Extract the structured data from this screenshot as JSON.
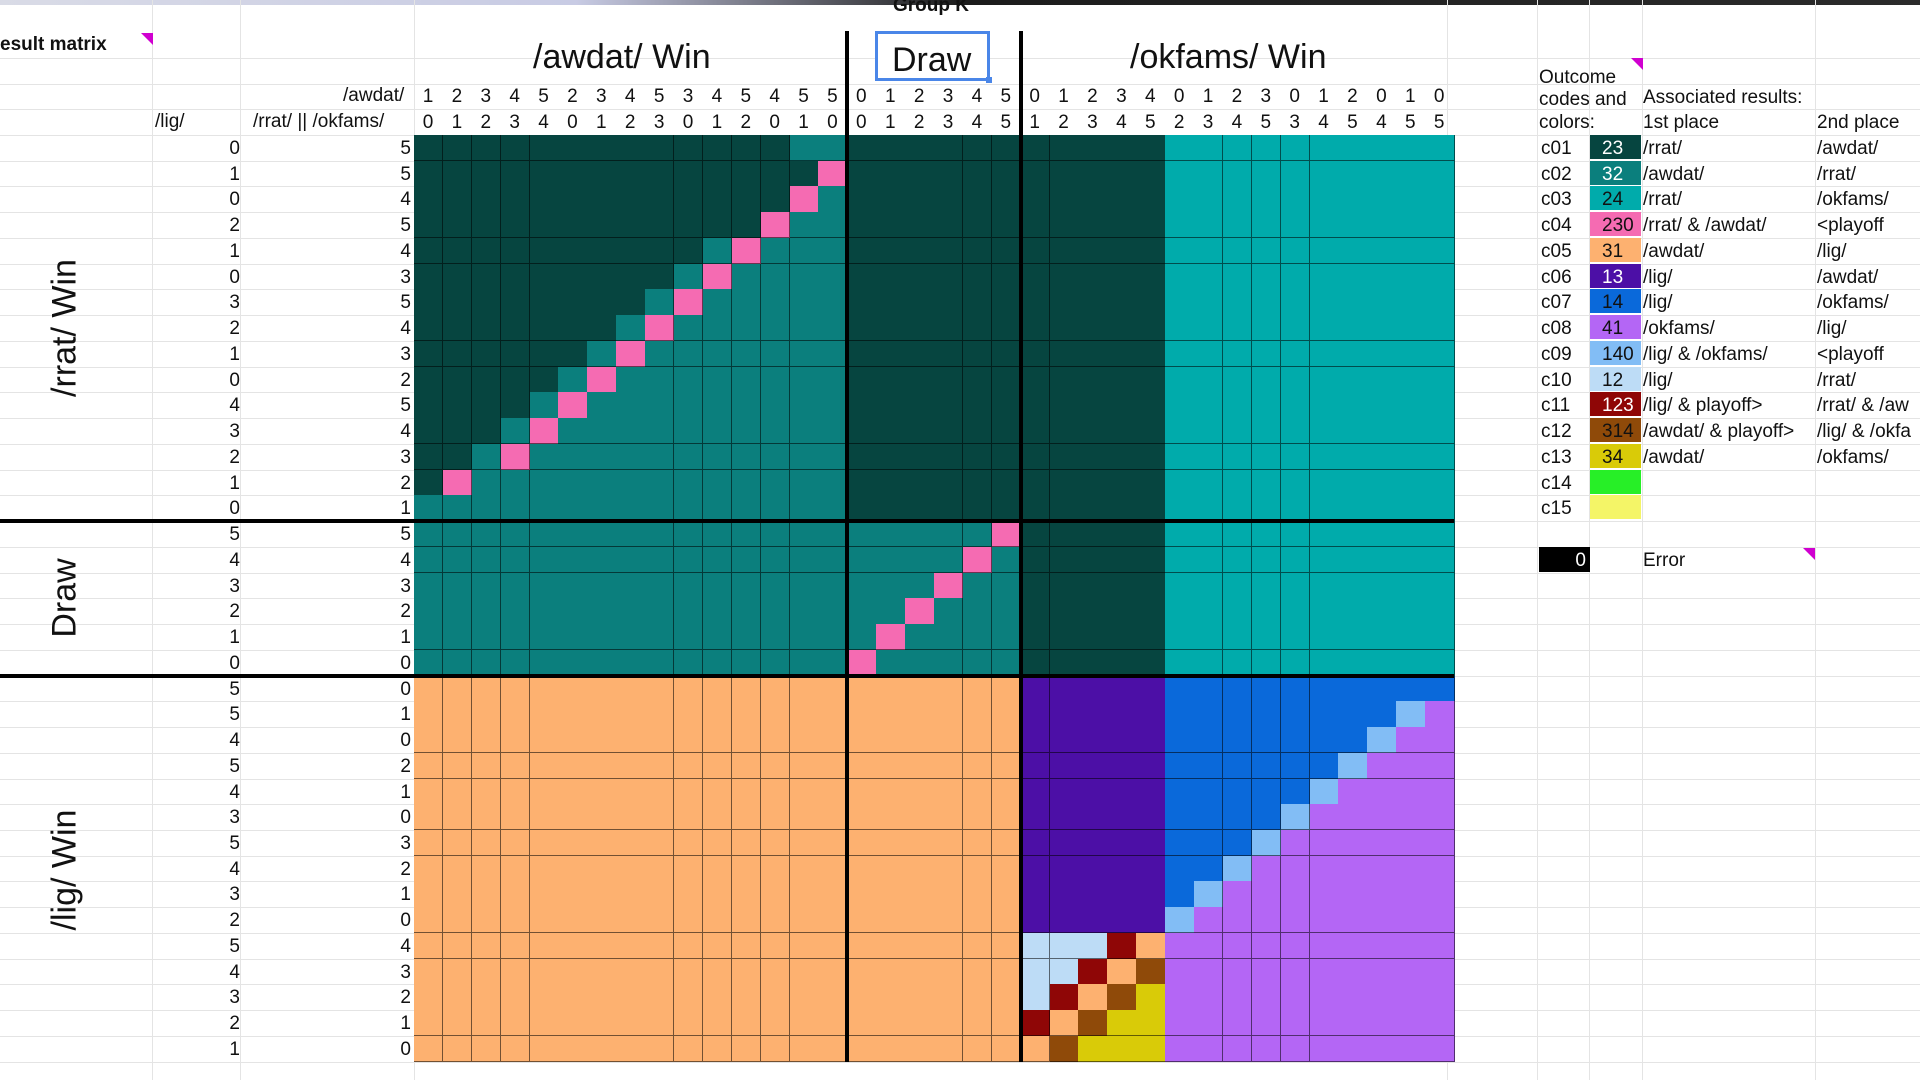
{
  "header": {
    "title_fragment": "esult matrix",
    "group_label": "Group K",
    "col_group_labels": [
      "/awdat/ Win",
      "Draw",
      "/okfams/ Win"
    ],
    "row_group_labels": [
      "/rrat/ Win",
      "Draw",
      "/lig/ Win"
    ],
    "row_header_team1": "/awdat/",
    "row_header_team2": "/rrat/ || /okfams/",
    "col_header_lig": "/lig/"
  },
  "matrix": {
    "col_awdat": [
      1,
      2,
      3,
      4,
      5,
      2,
      3,
      4,
      5,
      3,
      4,
      5,
      4,
      5,
      5,
      0,
      1,
      2,
      3,
      4,
      5,
      0,
      1,
      2,
      3,
      4,
      0,
      1,
      2,
      3,
      0,
      1,
      2,
      0,
      1,
      0
    ],
    "col_other": [
      0,
      1,
      2,
      3,
      4,
      0,
      1,
      2,
      3,
      0,
      1,
      2,
      0,
      1,
      0,
      0,
      1,
      2,
      3,
      4,
      5,
      1,
      2,
      3,
      4,
      5,
      2,
      3,
      4,
      5,
      3,
      4,
      5,
      4,
      5,
      5
    ],
    "row_lig": [
      0,
      1,
      0,
      2,
      1,
      0,
      3,
      2,
      1,
      0,
      4,
      3,
      2,
      1,
      0,
      5,
      4,
      3,
      2,
      1,
      0,
      5,
      5,
      4,
      5,
      4,
      3,
      5,
      4,
      3,
      2,
      5,
      4,
      3,
      2,
      1
    ],
    "row_other": [
      5,
      5,
      4,
      5,
      4,
      3,
      5,
      4,
      3,
      2,
      5,
      4,
      3,
      2,
      1,
      5,
      4,
      3,
      2,
      1,
      0,
      0,
      1,
      0,
      2,
      1,
      0,
      3,
      2,
      1,
      0,
      4,
      3,
      2,
      1,
      0
    ]
  },
  "legend": {
    "heading_codes": "Outcome codes and colors:",
    "heading_results": "Associated results:",
    "first_place_label": "1st place",
    "second_place_label": "2nd place",
    "items": [
      {
        "code": "c01",
        "value": "23",
        "color": "#064540",
        "text_color": "#ffffff",
        "first": "/rrat/",
        "second": "/awdat/"
      },
      {
        "code": "c02",
        "value": "32",
        "color": "#0b7f7d",
        "text_color": "#ffffff",
        "first": "/awdat/",
        "second": "/rrat/"
      },
      {
        "code": "c03",
        "value": "24",
        "color": "#00abab",
        "text_color": "#111111",
        "first": "/rrat/",
        "second": "/okfams/"
      },
      {
        "code": "c04",
        "value": "230",
        "color": "#f56bb2",
        "text_color": "#111111",
        "first": "/rrat/ & /awdat/",
        "second": "<playoff"
      },
      {
        "code": "c05",
        "value": "31",
        "color": "#fdb170",
        "text_color": "#111111",
        "first": "/awdat/",
        "second": "/lig/"
      },
      {
        "code": "c06",
        "value": "13",
        "color": "#4c0fa6",
        "text_color": "#ffffff",
        "first": "/lig/",
        "second": "/awdat/"
      },
      {
        "code": "c07",
        "value": "14",
        "color": "#0a69da",
        "text_color": "#111111",
        "first": "/lig/",
        "second": "/okfams/"
      },
      {
        "code": "c08",
        "value": "41",
        "color": "#b466f5",
        "text_color": "#111111",
        "first": "/okfams/",
        "second": "/lig/"
      },
      {
        "code": "c09",
        "value": "140",
        "color": "#82bdf5",
        "text_color": "#111111",
        "first": "/lig/ & /okfams/",
        "second": "<playoff"
      },
      {
        "code": "c10",
        "value": "12",
        "color": "#bddcf6",
        "text_color": "#111111",
        "first": "/lig/",
        "second": "/rrat/"
      },
      {
        "code": "c11",
        "value": "123",
        "color": "#8f0606",
        "text_color": "#ffffff",
        "first": "/lig/ & playoff>",
        "second": "/rrat/ & /aw"
      },
      {
        "code": "c12",
        "value": "314",
        "color": "#8f4a09",
        "text_color": "#111111",
        "first": "/awdat/ & playoff>",
        "second": "/lig/ & /okfa"
      },
      {
        "code": "c13",
        "value": "34",
        "color": "#d9cb08",
        "text_color": "#111111",
        "first": "/awdat/",
        "second": "/okfams/"
      },
      {
        "code": "c14",
        "value": "",
        "color": "#27ef27",
        "text_color": "#111111",
        "first": "",
        "second": ""
      },
      {
        "code": "c15",
        "value": "",
        "color": "#f4f567",
        "text_color": "#111111",
        "first": "",
        "second": ""
      }
    ],
    "error_value": "0",
    "error_label": "Error"
  }
}
